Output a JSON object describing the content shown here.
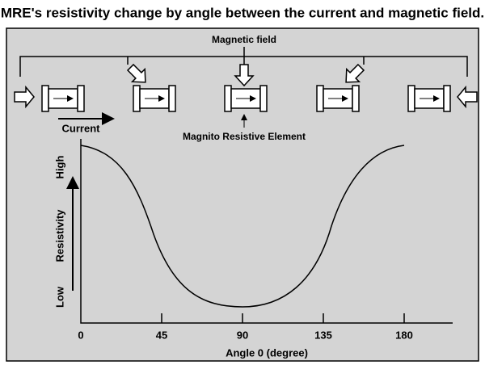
{
  "title": "MRE's resistivity change by angle between the current and magnetic field.",
  "magnetic_field_label": "Magnetic field",
  "element_label": "Magnito Resistive Element",
  "current_label": "Current",
  "y_axis": {
    "label": "Resistivity",
    "high": "High",
    "low": "Low"
  },
  "x_axis": {
    "label": "Angle 0 (degree)",
    "ticks": [
      0,
      45,
      90,
      135,
      180
    ]
  }
}
